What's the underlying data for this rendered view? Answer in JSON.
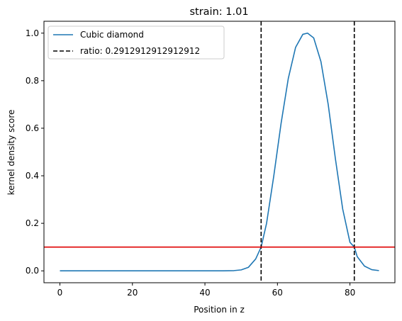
{
  "chart_data": {
    "type": "line",
    "title": "strain: 1.01",
    "xlabel": "Position in z",
    "ylabel": "kernel density score",
    "xlim": [
      -4.4,
      92.4
    ],
    "ylim": [
      -0.05,
      1.05
    ],
    "xticks": [
      0,
      20,
      40,
      60,
      80
    ],
    "yticks": [
      0.0,
      0.2,
      0.4,
      0.6,
      0.8,
      1.0
    ],
    "grid": false,
    "legend_position": "top-left",
    "series": [
      {
        "name": "Cubic diamond",
        "color": "#1f77b4",
        "style": "solid",
        "x": [
          0,
          10,
          20,
          30,
          40,
          45,
          48,
          50,
          52,
          54,
          55.5,
          57,
          59,
          61,
          63,
          65,
          67,
          68.3,
          70,
          72,
          74,
          76,
          78,
          80,
          81.2,
          82,
          84,
          86,
          88
        ],
        "y": [
          0.0,
          0.0,
          0.0,
          0.0,
          0.0,
          0.0,
          0.001,
          0.004,
          0.015,
          0.05,
          0.1,
          0.2,
          0.4,
          0.62,
          0.81,
          0.94,
          0.995,
          1.0,
          0.98,
          0.88,
          0.7,
          0.47,
          0.26,
          0.12,
          0.1,
          0.06,
          0.02,
          0.005,
          0.001
        ]
      }
    ],
    "vlines": [
      {
        "name": "ratio: 0.2912912912912912",
        "x": 55.5,
        "color": "#000000",
        "style": "dashed"
      },
      {
        "x": 81.2,
        "color": "#000000",
        "style": "dashed"
      }
    ],
    "hlines": [
      {
        "y": 0.1,
        "color": "#e00000",
        "style": "solid"
      }
    ]
  }
}
